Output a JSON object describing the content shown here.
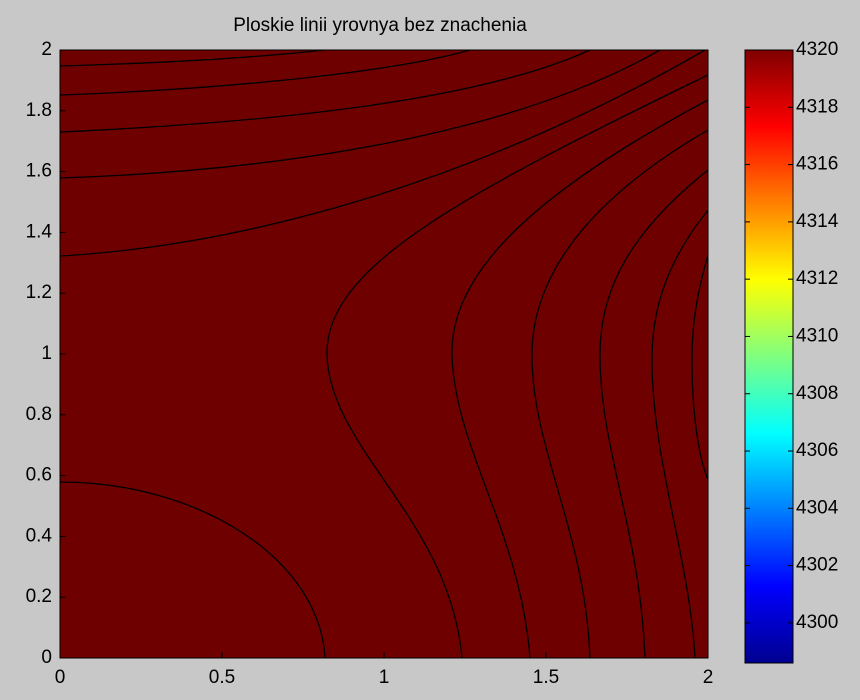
{
  "chart_data": {
    "type": "contour",
    "title": "Ploskie linii yrovnya bez znachenia",
    "xlim": [
      0,
      2
    ],
    "ylim": [
      0,
      2
    ],
    "xticks": [
      0,
      0.5,
      1,
      1.5,
      2
    ],
    "yticks": [
      0,
      0.2,
      0.4,
      0.6,
      0.8,
      1,
      1.2,
      1.4,
      1.6,
      1.8,
      2
    ],
    "fill_color": "#6e0000",
    "colorbar": {
      "clim": [
        4298.6,
        4320
      ],
      "ticks": [
        4300,
        4302,
        4304,
        4306,
        4308,
        4310,
        4312,
        4314,
        4316,
        4318,
        4320
      ]
    }
  }
}
